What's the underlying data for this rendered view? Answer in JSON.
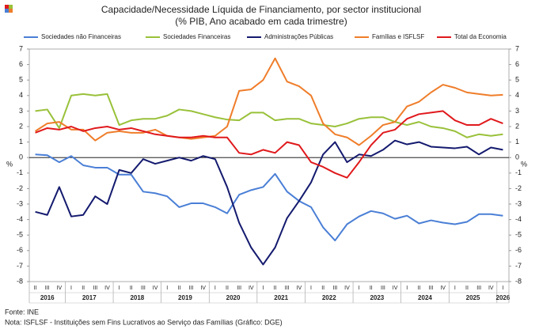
{
  "chart_data": {
    "type": "line",
    "title": "Capacidade/Necessidade Líquida de Financiamento, por sector institucional",
    "subtitle": "(% PIB, Ano acabado em cada trimestre)",
    "y_label": "%",
    "categories": [
      "II",
      "III",
      "IV",
      "I",
      "II",
      "III",
      "IV",
      "I",
      "II",
      "III",
      "IV",
      "I",
      "II",
      "III",
      "IV",
      "I",
      "II",
      "III",
      "IV",
      "I",
      "II",
      "III",
      "IV",
      "I",
      "II",
      "III",
      "IV",
      "I",
      "II",
      "III",
      "IV",
      "I",
      "II",
      "III",
      "IV",
      "I",
      "II",
      "III",
      "IV",
      "I"
    ],
    "years": [
      "2016",
      "2017",
      "2018",
      "2019",
      "2020",
      "2021",
      "2022",
      "2023",
      "2024",
      "2025",
      "2026"
    ],
    "ylim": [
      -8,
      7
    ],
    "yticks": [
      -8,
      -7,
      -6,
      -5,
      -4,
      -3,
      -2,
      -1,
      0,
      1,
      2,
      3,
      4,
      5,
      6,
      7
    ],
    "series": [
      {
        "name": "Sociedades não Financeiras",
        "color": "#4a7fd6",
        "values": [
          0.2,
          0.15,
          -0.3,
          0.1,
          -0.5,
          -0.65,
          -0.65,
          -1.1,
          -1.1,
          -2.2,
          -2.3,
          -2.5,
          -3.2,
          -2.95,
          -2.95,
          -3.2,
          -3.6,
          -2.4,
          -2.1,
          -1.9,
          -1.05,
          -2.2,
          -2.8,
          -3.2,
          -4.5,
          -5.35,
          -4.3,
          -3.8,
          -3.45,
          -3.6,
          -3.95,
          -3.75,
          -4.25,
          -4.05,
          -4.2,
          -4.3,
          -4.15,
          -3.65,
          -3.65,
          -3.75
        ]
      },
      {
        "name": "Sociedades Financeiras",
        "color": "#99c13a",
        "values": [
          3.0,
          3.1,
          1.9,
          4.0,
          4.1,
          4.0,
          4.1,
          2.1,
          2.4,
          2.5,
          2.5,
          2.7,
          3.1,
          3.0,
          2.8,
          2.6,
          2.45,
          2.4,
          2.9,
          2.9,
          2.4,
          2.5,
          2.5,
          2.2,
          2.1,
          2.0,
          2.2,
          2.5,
          2.6,
          2.6,
          2.3,
          2.1,
          2.3,
          2.0,
          1.9,
          1.7,
          1.3,
          1.5,
          1.4,
          1.5
        ]
      },
      {
        "name": "Administrações Públicas",
        "color": "#141a6e",
        "values": [
          -3.5,
          -3.7,
          -1.9,
          -3.8,
          -3.7,
          -2.5,
          -3.0,
          -0.8,
          -1.0,
          -0.1,
          -0.4,
          -0.2,
          0.0,
          -0.2,
          0.1,
          -0.1,
          -1.9,
          -4.2,
          -5.8,
          -6.9,
          -5.8,
          -3.9,
          -2.8,
          -1.6,
          0.2,
          1.0,
          -0.3,
          0.2,
          0.1,
          0.5,
          1.1,
          0.85,
          1.0,
          0.7,
          0.65,
          0.6,
          0.7,
          0.2,
          0.65,
          0.5
        ]
      },
      {
        "name": "Famílias e ISFLSF",
        "color": "#ef7d2a",
        "values": [
          1.7,
          2.2,
          2.3,
          1.8,
          1.8,
          1.1,
          1.6,
          1.7,
          1.6,
          1.6,
          1.8,
          1.4,
          1.3,
          1.2,
          1.3,
          1.4,
          2.0,
          4.3,
          4.4,
          5.0,
          6.4,
          4.9,
          4.6,
          4.0,
          2.2,
          1.5,
          1.3,
          0.8,
          1.4,
          2.1,
          2.3,
          3.3,
          3.6,
          4.2,
          4.7,
          4.5,
          4.2,
          4.1,
          4.0,
          4.05
        ]
      },
      {
        "name": "Total da Economia",
        "color": "#e0191c",
        "values": [
          1.6,
          1.9,
          1.8,
          2.0,
          1.7,
          1.9,
          2.0,
          1.8,
          1.9,
          1.7,
          1.5,
          1.4,
          1.3,
          1.3,
          1.4,
          1.3,
          1.3,
          0.3,
          0.2,
          0.5,
          0.3,
          1.0,
          0.8,
          -0.3,
          -0.6,
          -1.0,
          -1.3,
          -0.3,
          0.8,
          1.6,
          1.8,
          2.5,
          2.8,
          2.9,
          3.0,
          2.4,
          2.1,
          2.1,
          2.5,
          2.2
        ]
      }
    ],
    "source": "Fonte: INE",
    "note": "Nota: ISFLSF - Instituições sem Fins Lucrativos ao Serviço das Famílias (Gráfico: DGE)"
  }
}
